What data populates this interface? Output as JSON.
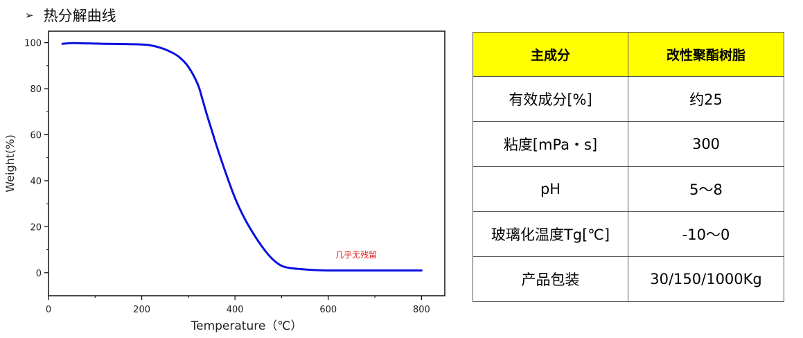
{
  "heading": {
    "bullet": "➢",
    "text": "热分解曲线"
  },
  "chart_data": {
    "type": "line",
    "xlabel": "Temperature（℃）",
    "ylabel": "Weight(%)",
    "xlim": [
      0,
      850
    ],
    "ylim": [
      -10,
      105
    ],
    "x_ticks": [
      0,
      200,
      400,
      600,
      800
    ],
    "y_ticks": [
      0,
      20,
      40,
      60,
      80,
      100
    ],
    "grid": false,
    "annotation": "几乎无残留",
    "series": [
      {
        "color": "#0a10e0",
        "x": [
          30,
          50,
          80,
          120,
          160,
          200,
          220,
          240,
          260,
          280,
          300,
          320,
          330,
          340,
          350,
          360,
          380,
          400,
          420,
          440,
          460,
          480,
          500,
          520,
          540,
          560,
          580,
          600,
          620,
          700,
          800
        ],
        "y": [
          99.5,
          99.8,
          99.7,
          99.5,
          99.4,
          99.2,
          98.8,
          97.8,
          96.2,
          93.8,
          89.5,
          82.0,
          75.5,
          68.5,
          62.0,
          55.5,
          43.5,
          32.5,
          23.8,
          16.8,
          10.8,
          6.0,
          3.0,
          2.0,
          1.6,
          1.3,
          1.1,
          1.0,
          1.0,
          1.0,
          1.0
        ]
      }
    ]
  },
  "table": {
    "header": [
      "主成分",
      "改性聚酯树脂"
    ],
    "rows": [
      [
        "有效成分[%]",
        "约25"
      ],
      [
        "粘度[mPa・s]",
        "300"
      ],
      [
        "pH",
        "5～8"
      ],
      [
        "玻璃化温度Tg[℃]",
        "-10～0"
      ],
      [
        "产品包装",
        "30/150/1000Kg"
      ]
    ]
  }
}
